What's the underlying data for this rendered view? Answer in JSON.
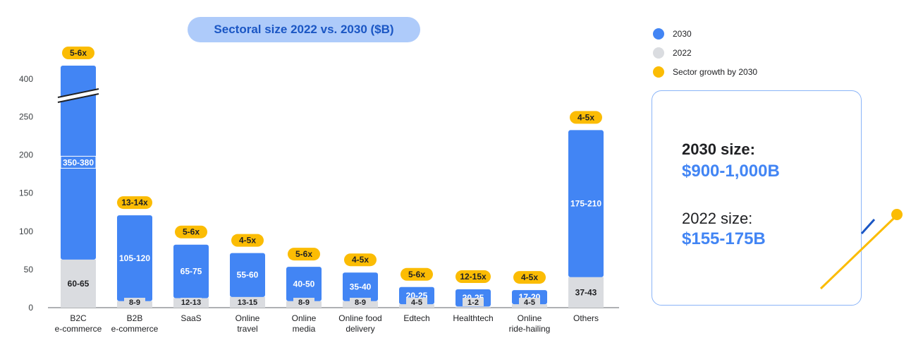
{
  "colors": {
    "bar_2030": "#4285f4",
    "bar_2022": "#dadce0",
    "growth": "#fbbc04",
    "title_bg": "#aecbfa",
    "title_text": "#1a56c4"
  },
  "chart_data": {
    "type": "bar",
    "stacked": true,
    "title": "Sectoral size 2022 vs. 2030 ($B)",
    "y_tick_labels": [
      "0",
      "50",
      "100",
      "150",
      "200",
      "250",
      "400"
    ],
    "axis_break": "between 250 and 400",
    "categories": [
      "B2C e-commerce",
      "B2B e-commerce",
      "SaaS",
      "Online travel",
      "Online media",
      "Online food delivery",
      "Edtech",
      "Healthtech",
      "Online ride-hailing",
      "Others"
    ],
    "category_lines": [
      [
        "B2C",
        "e-commerce"
      ],
      [
        "B2B",
        "e-commerce"
      ],
      [
        "SaaS"
      ],
      [
        "Online",
        "travel"
      ],
      [
        "Online",
        "media"
      ],
      [
        "Online food",
        "delivery"
      ],
      [
        "Edtech"
      ],
      [
        "Healthtech"
      ],
      [
        "Online",
        "ride-hailing"
      ],
      [
        "Others"
      ]
    ],
    "series": [
      {
        "name": "2022",
        "values": [
          63,
          8.5,
          12.5,
          14,
          8.5,
          8.5,
          4.5,
          1.5,
          4.5,
          40
        ],
        "labels": [
          "60-65",
          "8-9",
          "12-13",
          "13-15",
          "8-9",
          "8-9",
          "4-5",
          "1-2",
          "4-5",
          "37-43"
        ]
      },
      {
        "name": "2030",
        "values": [
          365,
          112.5,
          70,
          57.5,
          45,
          37.5,
          22.5,
          22.5,
          18.5,
          192.5
        ],
        "labels": [
          "350-380",
          "105-120",
          "65-75",
          "55-60",
          "40-50",
          "35-40",
          "20-25",
          "20-25",
          "17-20",
          "175-210"
        ]
      }
    ],
    "growth_labels": [
      "5-6x",
      "13-14x",
      "5-6x",
      "4-5x",
      "5-6x",
      "4-5x",
      "5-6x",
      "12-15x",
      "4-5x",
      "4-5x"
    ],
    "legend": [
      "2030",
      "2022",
      "Sector growth by 2030"
    ]
  },
  "summary": {
    "size_2030_label": "2030 size:",
    "size_2030_value": "$900-1,000B",
    "size_2022_label": "2022 size:",
    "size_2022_value": "$155-175B"
  }
}
